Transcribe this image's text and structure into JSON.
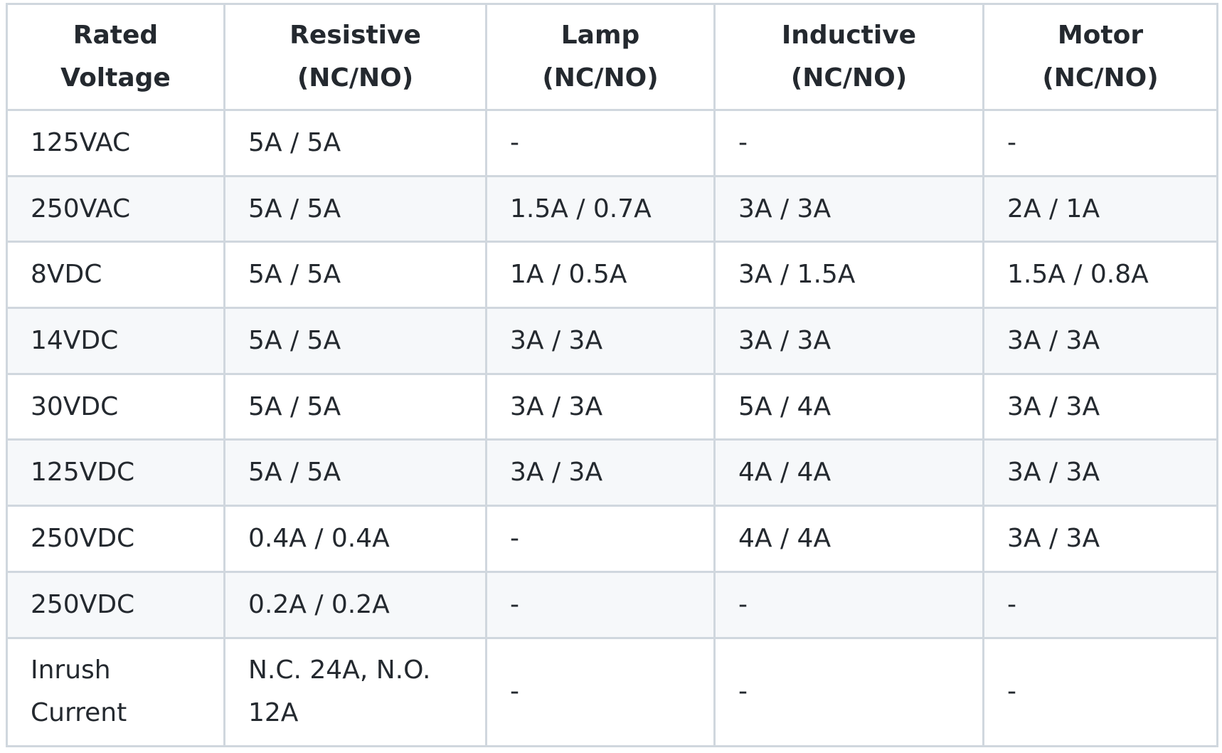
{
  "table": {
    "headers": [
      "Rated\nVoltage",
      "Resistive\n(NC/NO)",
      "Lamp\n(NC/NO)",
      "Inductive\n(NC/NO)",
      "Motor\n(NC/NO)"
    ],
    "rows": [
      [
        "125VAC",
        "5A / 5A",
        "-",
        "-",
        "-"
      ],
      [
        "250VAC",
        "5A / 5A",
        "1.5A / 0.7A",
        "3A / 3A",
        "2A / 1A"
      ],
      [
        "8VDC",
        "5A / 5A",
        "1A / 0.5A",
        "3A / 1.5A",
        "1.5A / 0.8A"
      ],
      [
        "14VDC",
        "5A / 5A",
        "3A / 3A",
        "3A / 3A",
        "3A / 3A"
      ],
      [
        "30VDC",
        "5A / 5A",
        "3A / 3A",
        "5A / 4A",
        "3A / 3A"
      ],
      [
        "125VDC",
        "5A / 5A",
        "3A / 3A",
        "4A / 4A",
        "3A / 3A"
      ],
      [
        "250VDC",
        "0.4A / 0.4A",
        "-",
        "4A / 4A",
        "3A / 3A"
      ],
      [
        "250VDC",
        "0.2A / 0.2A",
        "-",
        "-",
        "-"
      ],
      [
        "Inrush Current",
        "N.C. 24A, N.O. 12A",
        "-",
        "-",
        "-"
      ]
    ]
  }
}
